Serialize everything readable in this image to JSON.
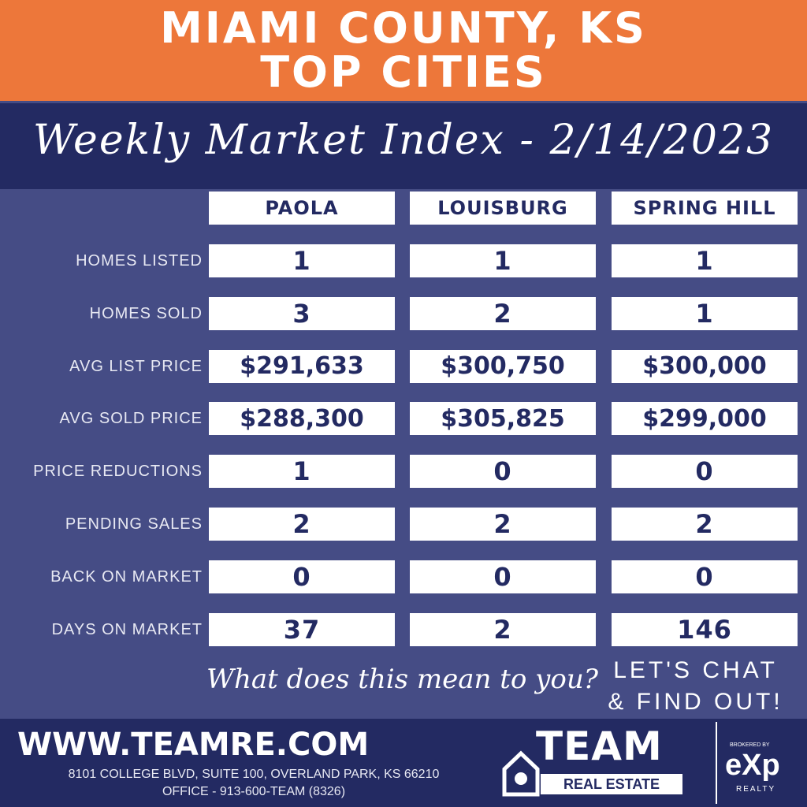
{
  "header": {
    "title_lines": [
      "MIAMI COUNTY, KS",
      "TOP CITIES"
    ],
    "subtitle": "Weekly Market Index - 2/14/2023"
  },
  "table": {
    "columns": [
      "PAOLA",
      "LOUISBURG",
      "SPRING HILL"
    ],
    "rows": [
      {
        "label": "HOMES LISTED",
        "values": [
          "1",
          "1",
          "1"
        ]
      },
      {
        "label": "HOMES SOLD",
        "values": [
          "3",
          "2",
          "1"
        ]
      },
      {
        "label": "AVG LIST PRICE",
        "values": [
          "$291,633",
          "$300,750",
          "$300,000"
        ]
      },
      {
        "label": "AVG SOLD PRICE",
        "values": [
          "$288,300",
          "$305,825",
          "$299,000"
        ]
      },
      {
        "label": "PRICE REDUCTIONS",
        "values": [
          "1",
          "0",
          "0"
        ]
      },
      {
        "label": "PENDING SALES",
        "values": [
          "2",
          "2",
          "2"
        ]
      },
      {
        "label": "BACK ON MARKET",
        "values": [
          "0",
          "0",
          "0"
        ]
      },
      {
        "label": "DAYS ON MARKET",
        "values": [
          "37",
          "2",
          "146"
        ]
      }
    ]
  },
  "prompt": "What does this mean to you?",
  "cta_lines": [
    "LET'S CHAT",
    "& FIND OUT!"
  ],
  "footer": {
    "website": "WWW.TEAMRE.COM",
    "address": "8101 COLLEGE BLVD, SUITE 100, OVERLAND PARK, KS 66210",
    "office": "OFFICE - 913-600-TEAM (8326)",
    "logo_team": "TEAM",
    "logo_real_estate": "REAL ESTATE",
    "brokered_by": "BROKERED BY",
    "exp": "eXp",
    "realty": "REALTY"
  }
}
